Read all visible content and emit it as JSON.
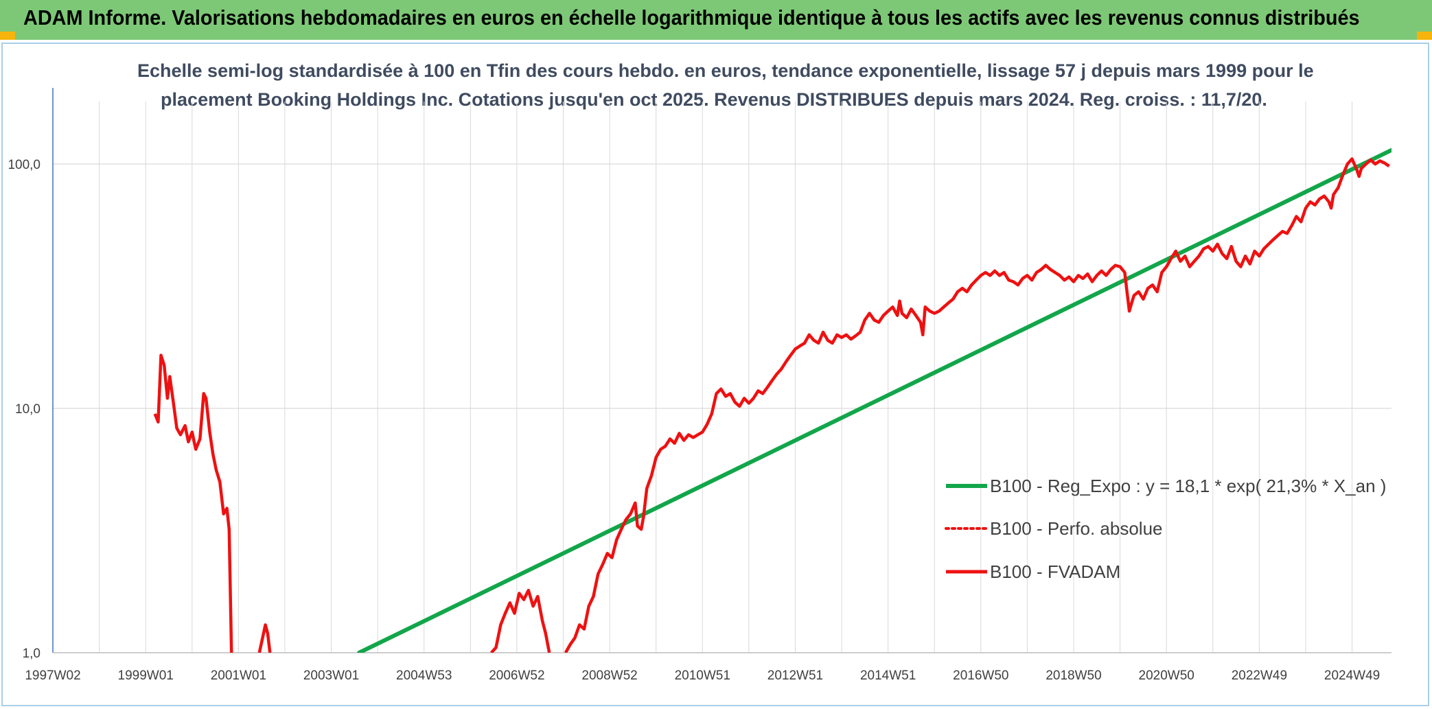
{
  "header": {
    "title": "ADAM Informe. Valorisations hebdomadaires en euros en échelle logarithmique identique à tous les actifs avec les revenus connus distribués",
    "subtitle_line1": "Echelle semi-log standardisée à 100 en Tfin des cours hebdo. en euros, tendance exponentielle, lissage 57 j depuis mars 1999 pour le",
    "subtitle_line2": "placement Booking Holdings Inc. Cotations jusqu'en oct 2025. Revenus DISTRIBUES depuis mars 2024. Reg. croiss. : 11,7/20."
  },
  "colors": {
    "banner": "#7dc876",
    "corner": "#f6b40d",
    "trend": "#12a64a",
    "fvadam": "#ee1111",
    "grid": "#d9d9d9",
    "yaxis": "#4472c4"
  },
  "chart_data": {
    "type": "line",
    "title": "Echelle semi-log standardisée à 100 en Tfin des cours hebdo. en euros, tendance exponentielle, lissage 57 j depuis mars 1999 pour le placement Booking Holdings Inc. Cotations jusqu'en oct 2025. Revenus DISTRIBUES depuis mars 2024. Reg. croiss. : 11,7/20.",
    "y_scale": "log",
    "ylim": [
      1,
      180
    ],
    "xlim": [
      1997.0,
      2025.85
    ],
    "y_ticks": [
      {
        "v": 1,
        "label": "1,0"
      },
      {
        "v": 10,
        "label": "10,0"
      },
      {
        "v": 100,
        "label": "100,0"
      }
    ],
    "x_ticks": [
      {
        "t": 1997.0,
        "label": "1997W02"
      },
      {
        "t": 1999.0,
        "label": "1999W01"
      },
      {
        "t": 2001.0,
        "label": "2001W01"
      },
      {
        "t": 2003.0,
        "label": "2003W01"
      },
      {
        "t": 2005.0,
        "label": "2004W53"
      },
      {
        "t": 2007.0,
        "label": "2006W52"
      },
      {
        "t": 2009.0,
        "label": "2008W52"
      },
      {
        "t": 2011.0,
        "label": "2010W51"
      },
      {
        "t": 2013.0,
        "label": "2012W51"
      },
      {
        "t": 2015.0,
        "label": "2014W51"
      },
      {
        "t": 2017.0,
        "label": "2016W50"
      },
      {
        "t": 2019.0,
        "label": "2018W50"
      },
      {
        "t": 2021.0,
        "label": "2020W50"
      },
      {
        "t": 2023.0,
        "label": "2022W49"
      },
      {
        "t": 2025.0,
        "label": "2024W49"
      }
    ],
    "legend_position": "right",
    "series": [
      {
        "name": "B100 - Reg_Expo : y = 18,1 * exp( 21,3% *  X_an )",
        "style": "solid-thick",
        "color": "#12a64a",
        "points": [
          [
            2003.6,
            1.0
          ],
          [
            2025.85,
            114
          ]
        ]
      },
      {
        "name": "B100 - Perfo. absolue",
        "style": "dotted",
        "color": "#ee1111",
        "points": []
      },
      {
        "name": "B100 - FVADAM",
        "style": "solid",
        "color": "#ee1111",
        "segments": [
          [
            [
              1999.2,
              9.5
            ],
            [
              1999.27,
              8.8
            ],
            [
              1999.33,
              16.5
            ],
            [
              1999.4,
              15.0
            ],
            [
              1999.47,
              11.0
            ],
            [
              1999.52,
              13.5
            ],
            [
              1999.6,
              10.5
            ],
            [
              1999.67,
              8.3
            ],
            [
              1999.75,
              7.8
            ],
            [
              1999.85,
              8.5
            ],
            [
              1999.92,
              7.3
            ],
            [
              2000.0,
              8.0
            ],
            [
              2000.08,
              6.8
            ],
            [
              2000.17,
              7.5
            ],
            [
              2000.25,
              11.5
            ],
            [
              2000.3,
              11.0
            ],
            [
              2000.38,
              8.0
            ],
            [
              2000.45,
              6.5
            ],
            [
              2000.52,
              5.6
            ],
            [
              2000.6,
              5.0
            ],
            [
              2000.68,
              3.7
            ],
            [
              2000.75,
              3.9
            ],
            [
              2000.8,
              3.2
            ],
            [
              2000.85,
              1.0
            ]
          ],
          [
            [
              2001.45,
              1.0
            ],
            [
              2001.52,
              1.15
            ],
            [
              2001.58,
              1.3
            ],
            [
              2001.63,
              1.2
            ],
            [
              2001.68,
              1.0
            ]
          ],
          [
            [
              2006.45,
              1.0
            ],
            [
              2006.55,
              1.05
            ],
            [
              2006.65,
              1.3
            ],
            [
              2006.75,
              1.45
            ],
            [
              2006.85,
              1.6
            ],
            [
              2006.95,
              1.45
            ],
            [
              2007.05,
              1.75
            ],
            [
              2007.15,
              1.65
            ],
            [
              2007.25,
              1.8
            ],
            [
              2007.35,
              1.55
            ],
            [
              2007.45,
              1.7
            ],
            [
              2007.55,
              1.35
            ],
            [
              2007.62,
              1.2
            ],
            [
              2007.7,
              1.0
            ]
          ],
          [
            [
              2008.05,
              1.0
            ],
            [
              2008.15,
              1.08
            ],
            [
              2008.25,
              1.15
            ],
            [
              2008.35,
              1.3
            ],
            [
              2008.45,
              1.25
            ],
            [
              2008.55,
              1.55
            ],
            [
              2008.65,
              1.7
            ],
            [
              2008.75,
              2.1
            ],
            [
              2008.85,
              2.3
            ],
            [
              2008.95,
              2.55
            ],
            [
              2009.05,
              2.45
            ],
            [
              2009.15,
              2.9
            ],
            [
              2009.25,
              3.2
            ],
            [
              2009.35,
              3.5
            ],
            [
              2009.45,
              3.7
            ],
            [
              2009.55,
              4.1
            ],
            [
              2009.6,
              3.3
            ],
            [
              2009.68,
              3.2
            ],
            [
              2009.73,
              3.6
            ],
            [
              2009.8,
              4.7
            ],
            [
              2009.9,
              5.3
            ],
            [
              2010.0,
              6.3
            ],
            [
              2010.1,
              6.8
            ],
            [
              2010.2,
              7.0
            ],
            [
              2010.3,
              7.5
            ],
            [
              2010.4,
              7.2
            ],
            [
              2010.5,
              7.9
            ],
            [
              2010.6,
              7.4
            ],
            [
              2010.7,
              7.8
            ],
            [
              2010.8,
              7.6
            ],
            [
              2010.9,
              7.8
            ],
            [
              2011.0,
              8.0
            ],
            [
              2011.1,
              8.6
            ],
            [
              2011.2,
              9.5
            ],
            [
              2011.3,
              11.5
            ],
            [
              2011.4,
              12.0
            ],
            [
              2011.5,
              11.2
            ],
            [
              2011.6,
              11.5
            ],
            [
              2011.7,
              10.6
            ],
            [
              2011.8,
              10.2
            ],
            [
              2011.9,
              11.0
            ],
            [
              2012.0,
              10.5
            ],
            [
              2012.1,
              11.0
            ],
            [
              2012.2,
              11.8
            ],
            [
              2012.3,
              11.5
            ],
            [
              2012.4,
              12.2
            ],
            [
              2012.5,
              13.0
            ],
            [
              2012.6,
              13.8
            ],
            [
              2012.7,
              14.5
            ],
            [
              2012.8,
              15.5
            ],
            [
              2012.9,
              16.5
            ],
            [
              2013.0,
              17.5
            ],
            [
              2013.1,
              18.0
            ],
            [
              2013.2,
              18.5
            ],
            [
              2013.3,
              20.0
            ],
            [
              2013.4,
              19.0
            ],
            [
              2013.5,
              18.5
            ],
            [
              2013.6,
              20.5
            ],
            [
              2013.7,
              19.0
            ],
            [
              2013.8,
              18.5
            ],
            [
              2013.9,
              20.0
            ],
            [
              2014.0,
              19.5
            ],
            [
              2014.1,
              20.0
            ],
            [
              2014.2,
              19.2
            ],
            [
              2014.3,
              19.8
            ],
            [
              2014.4,
              20.5
            ],
            [
              2014.5,
              23.0
            ],
            [
              2014.6,
              24.5
            ],
            [
              2014.7,
              23.0
            ],
            [
              2014.8,
              22.5
            ],
            [
              2014.9,
              24.0
            ],
            [
              2015.0,
              25.0
            ],
            [
              2015.1,
              26.0
            ],
            [
              2015.2,
              24.0
            ],
            [
              2015.25,
              27.5
            ],
            [
              2015.3,
              24.5
            ],
            [
              2015.4,
              23.5
            ],
            [
              2015.5,
              25.5
            ],
            [
              2015.6,
              24.0
            ],
            [
              2015.7,
              22.5
            ],
            [
              2015.75,
              20.0
            ],
            [
              2015.8,
              26.0
            ],
            [
              2015.9,
              25.0
            ],
            [
              2016.0,
              24.5
            ],
            [
              2016.1,
              25.0
            ],
            [
              2016.2,
              26.0
            ],
            [
              2016.3,
              27.0
            ],
            [
              2016.4,
              28.0
            ],
            [
              2016.5,
              30.0
            ],
            [
              2016.6,
              31.0
            ],
            [
              2016.7,
              30.0
            ],
            [
              2016.8,
              32.0
            ],
            [
              2016.9,
              33.5
            ],
            [
              2017.0,
              35.0
            ],
            [
              2017.1,
              36.0
            ],
            [
              2017.2,
              35.0
            ],
            [
              2017.3,
              36.5
            ],
            [
              2017.4,
              35.0
            ],
            [
              2017.5,
              36.0
            ],
            [
              2017.6,
              33.5
            ],
            [
              2017.7,
              33.0
            ],
            [
              2017.8,
              32.0
            ],
            [
              2017.9,
              34.0
            ],
            [
              2018.0,
              35.0
            ],
            [
              2018.1,
              33.5
            ],
            [
              2018.2,
              36.0
            ],
            [
              2018.3,
              37.0
            ],
            [
              2018.4,
              38.5
            ],
            [
              2018.5,
              37.0
            ],
            [
              2018.6,
              36.0
            ],
            [
              2018.7,
              35.0
            ],
            [
              2018.8,
              33.5
            ],
            [
              2018.9,
              34.5
            ],
            [
              2019.0,
              33.0
            ],
            [
              2019.1,
              35.0
            ],
            [
              2019.2,
              34.0
            ],
            [
              2019.3,
              35.5
            ],
            [
              2019.4,
              33.0
            ],
            [
              2019.5,
              35.0
            ],
            [
              2019.6,
              36.5
            ],
            [
              2019.7,
              35.0
            ],
            [
              2019.8,
              37.0
            ],
            [
              2019.9,
              38.5
            ],
            [
              2020.0,
              38.0
            ],
            [
              2020.1,
              36.0
            ],
            [
              2020.15,
              30.0
            ],
            [
              2020.2,
              25.0
            ],
            [
              2020.25,
              27.0
            ],
            [
              2020.3,
              29.0
            ],
            [
              2020.4,
              30.0
            ],
            [
              2020.5,
              28.0
            ],
            [
              2020.6,
              31.0
            ],
            [
              2020.7,
              32.0
            ],
            [
              2020.8,
              30.0
            ],
            [
              2020.9,
              36.0
            ],
            [
              2021.0,
              38.0
            ],
            [
              2021.1,
              41.0
            ],
            [
              2021.2,
              44.0
            ],
            [
              2021.3,
              40.0
            ],
            [
              2021.4,
              42.0
            ],
            [
              2021.5,
              38.0
            ],
            [
              2021.6,
              40.0
            ],
            [
              2021.7,
              42.0
            ],
            [
              2021.8,
              45.0
            ],
            [
              2021.9,
              46.0
            ],
            [
              2022.0,
              44.0
            ],
            [
              2022.1,
              47.0
            ],
            [
              2022.2,
              43.0
            ],
            [
              2022.3,
              41.0
            ],
            [
              2022.4,
              46.0
            ],
            [
              2022.5,
              40.0
            ],
            [
              2022.6,
              38.0
            ],
            [
              2022.7,
              42.0
            ],
            [
              2022.8,
              39.0
            ],
            [
              2022.9,
              44.0
            ],
            [
              2023.0,
              42.0
            ],
            [
              2023.1,
              45.0
            ],
            [
              2023.2,
              47.0
            ],
            [
              2023.3,
              49.0
            ],
            [
              2023.4,
              51.0
            ],
            [
              2023.5,
              53.0
            ],
            [
              2023.6,
              52.0
            ],
            [
              2023.7,
              56.0
            ],
            [
              2023.8,
              61.0
            ],
            [
              2023.9,
              58.0
            ],
            [
              2024.0,
              66.0
            ],
            [
              2024.1,
              70.0
            ],
            [
              2024.2,
              68.0
            ],
            [
              2024.3,
              72.0
            ],
            [
              2024.4,
              74.0
            ],
            [
              2024.5,
              70.0
            ],
            [
              2024.55,
              66.0
            ],
            [
              2024.6,
              75.0
            ],
            [
              2024.7,
              80.0
            ],
            [
              2024.8,
              90.0
            ],
            [
              2024.9,
              100.0
            ],
            [
              2025.0,
              105.0
            ],
            [
              2025.1,
              95.0
            ],
            [
              2025.15,
              89.0
            ],
            [
              2025.2,
              96.0
            ],
            [
              2025.3,
              100.0
            ],
            [
              2025.4,
              104.0
            ],
            [
              2025.5,
              100.0
            ],
            [
              2025.6,
              103.0
            ],
            [
              2025.7,
              101.0
            ],
            [
              2025.8,
              98.0
            ]
          ]
        ]
      }
    ]
  }
}
